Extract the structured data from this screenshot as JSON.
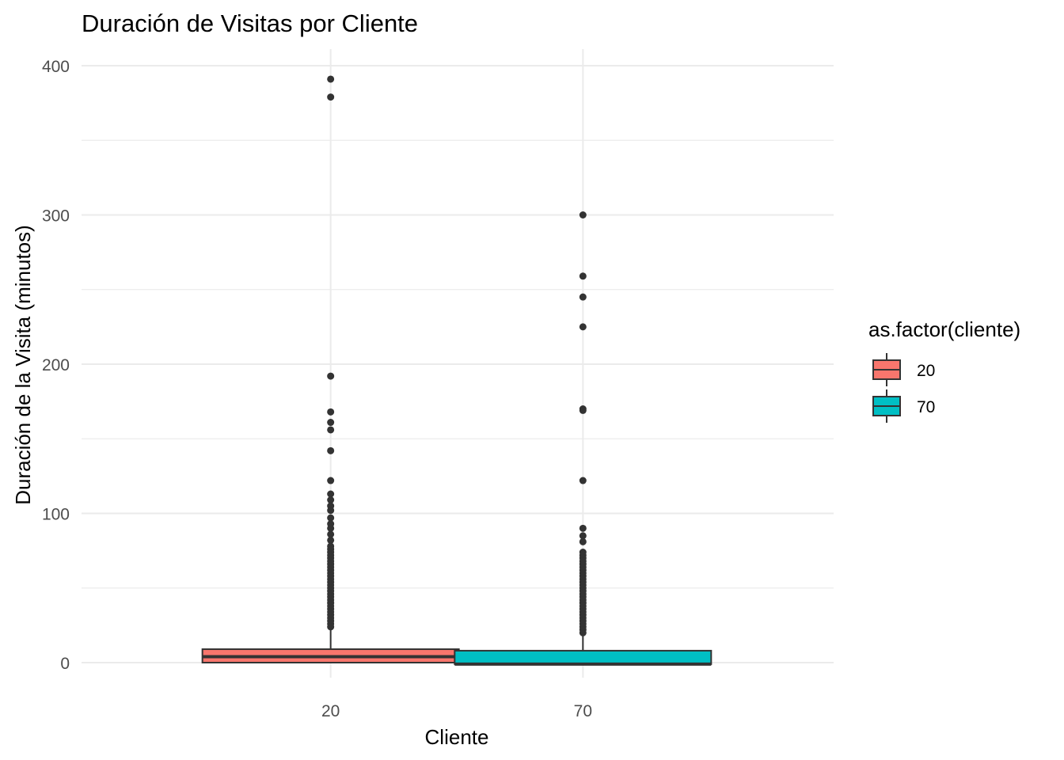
{
  "chart_data": {
    "type": "boxplot",
    "title": "Duración de Visitas por Cliente",
    "xlabel": "Cliente",
    "ylabel": "Duración de la Visita (minutos)",
    "categories": [
      "20",
      "70"
    ],
    "ylim": [
      -15,
      410
    ],
    "yticks": [
      0,
      100,
      200,
      300,
      400
    ],
    "grid": true,
    "legend": {
      "title": "as.factor(cliente)",
      "position": "right",
      "entries": [
        "20",
        "70"
      ]
    },
    "series": [
      {
        "category": "20",
        "color": "#F8766D",
        "min": 0,
        "q1": 0,
        "median": 4,
        "q3": 9,
        "whisker_high": 22,
        "outliers": [
          391,
          379,
          192,
          168,
          161,
          156,
          142,
          122,
          113,
          109,
          105,
          102,
          97,
          93,
          90,
          86,
          82,
          78,
          76,
          74,
          72,
          70,
          68,
          66,
          64,
          62,
          60,
          58,
          56,
          54,
          52,
          50,
          48,
          46,
          44,
          42,
          40,
          38,
          36,
          34,
          32,
          30,
          28,
          26,
          24
        ]
      },
      {
        "category": "70",
        "color": "#00BFC4",
        "min": -1,
        "q1": -1,
        "median": -1,
        "q3": 8,
        "whisker_high": 19,
        "outliers": [
          300,
          259,
          245,
          225,
          170,
          169,
          122,
          90,
          85,
          81,
          74,
          72,
          70,
          68,
          66,
          64,
          62,
          60,
          58,
          56,
          54,
          52,
          50,
          48,
          46,
          44,
          42,
          40,
          38,
          36,
          34,
          32,
          30,
          28,
          26,
          24,
          22,
          20
        ]
      }
    ]
  }
}
